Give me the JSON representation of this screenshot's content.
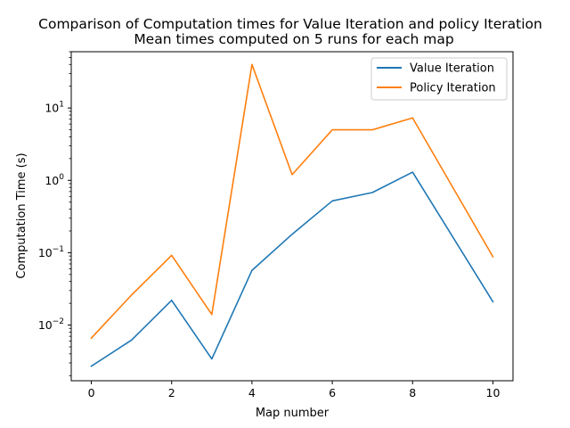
{
  "chart_data": {
    "type": "line",
    "title": "Comparison of Computation times for Value Iteration and policy Iteration",
    "subtitle": "Mean times computed on 5 runs for each map",
    "xlabel": "Map number",
    "ylabel": "Computation Time (s)",
    "yscale": "log",
    "xlim": [
      -0.5,
      10.5
    ],
    "ylim": [
      0.0017,
      60
    ],
    "x_ticks": [
      0,
      2,
      4,
      6,
      8,
      10
    ],
    "y_ticks": [
      {
        "base": "10",
        "exp": "−2",
        "value": 0.01
      },
      {
        "base": "10",
        "exp": "−1",
        "value": 0.1
      },
      {
        "base": "10",
        "exp": "0",
        "value": 1
      },
      {
        "base": "10",
        "exp": "1",
        "value": 10
      }
    ],
    "x": [
      0,
      1,
      2,
      3,
      4,
      5,
      6,
      7,
      8,
      10
    ],
    "series": [
      {
        "name": "Value Iteration",
        "color": "#1f77b4",
        "values": [
          0.0027,
          0.0062,
          0.022,
          0.0034,
          0.057,
          0.18,
          0.52,
          0.68,
          1.3,
          0.021
        ]
      },
      {
        "name": "Policy Iteration",
        "color": "#ff7f0e",
        "values": [
          0.0066,
          0.026,
          0.092,
          0.014,
          40,
          1.2,
          5.0,
          5.0,
          7.3,
          0.088
        ]
      }
    ],
    "legend_position": "top-right",
    "grid": false
  }
}
